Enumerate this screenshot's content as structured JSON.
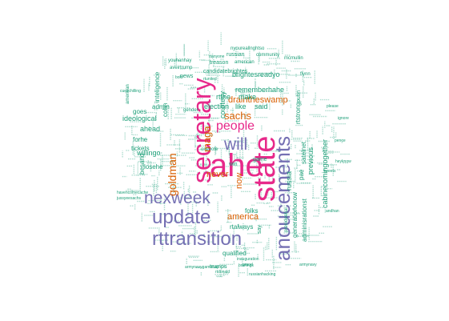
{
  "palette": {
    "teal": "#1b9e77",
    "orange": "#d95f02",
    "purple": "#7570b3",
    "pink": "#e7298a"
  },
  "words": [
    {
      "text": "ahe",
      "color": "pink"
    },
    {
      "text": "state",
      "color": "pink"
    },
    {
      "text": "secretary",
      "color": "pink"
    },
    {
      "text": "anoucements",
      "color": "purple"
    },
    {
      "text": "update",
      "color": "purple"
    },
    {
      "text": "nexweek",
      "color": "purple"
    },
    {
      "text": "rttransition",
      "color": "purple"
    },
    {
      "text": "will",
      "color": "purple"
    },
    {
      "text": "people",
      "color": "pink"
    },
    {
      "text": "goldman",
      "color": "orange"
    },
    {
      "text": "maga",
      "color": "orange"
    },
    {
      "text": "sachs",
      "color": "orange"
    },
    {
      "text": "draintheswamp",
      "color": "orange"
    },
    {
      "text": "america",
      "color": "orange"
    },
    {
      "text": "never",
      "color": "orange"
    },
    {
      "text": "now",
      "color": "orange"
    },
    {
      "text": "brightesreadyo",
      "color": "teal"
    },
    {
      "text": "rememberhahe",
      "color": "teal"
    },
    {
      "text": "election",
      "color": "teal"
    },
    {
      "text": "like",
      "color": "teal"
    },
    {
      "text": "said",
      "color": "teal"
    },
    {
      "text": "make",
      "color": "teal"
    },
    {
      "text": "rtthe",
      "color": "teal"
    },
    {
      "text": "ahead",
      "color": "teal"
    },
    {
      "text": "ideological",
      "color": "teal"
    },
    {
      "text": "forhe",
      "color": "teal"
    },
    {
      "text": "willingo",
      "color": "teal"
    },
    {
      "text": "tickets",
      "color": "teal"
    },
    {
      "text": "losehe",
      "color": "teal"
    },
    {
      "text": "besand",
      "color": "teal"
    },
    {
      "text": "goes",
      "color": "teal"
    },
    {
      "text": "admin",
      "color": "teal"
    },
    {
      "text": "cohn",
      "color": "teal"
    },
    {
      "text": "inteligence",
      "color": "teal"
    },
    {
      "text": "candidatebrightes",
      "color": "teal"
    },
    {
      "text": "treason",
      "color": "teal"
    },
    {
      "text": "russian",
      "color": "teal"
    },
    {
      "text": "qualified",
      "color": "teal"
    },
    {
      "text": "rtalways",
      "color": "teal"
    },
    {
      "text": "trumps",
      "color": "teal"
    },
    {
      "text": "folks",
      "color": "teal"
    },
    {
      "text": "russia",
      "color": "teal"
    },
    {
      "text": "pae",
      "color": "teal"
    },
    {
      "text": "satelnet",
      "color": "teal"
    },
    {
      "text": "generationonow",
      "color": "teal"
    },
    {
      "text": "previous",
      "color": "teal"
    },
    {
      "text": "adminisrationst",
      "color": "teal"
    },
    {
      "text": "cabinecomingogether",
      "color": "teal"
    },
    {
      "text": "rtstrong",
      "color": "teal"
    },
    {
      "text": "courtesy",
      "color": "teal"
    },
    {
      "text": "news",
      "color": "teal"
    },
    {
      "text": "game",
      "color": "teal"
    },
    {
      "text": "onevote",
      "color": "teal"
    },
    {
      "text": "win",
      "color": "teal"
    },
    {
      "text": "say",
      "color": "teal"
    },
    {
      "text": "putin",
      "color": "teal"
    },
    {
      "text": "mcmullin",
      "color": "teal"
    },
    {
      "text": "american",
      "color": "teal"
    },
    {
      "text": "community",
      "color": "teal"
    },
    {
      "text": "nyoureallnghtso",
      "color": "teal"
    },
    {
      "text": "youhanhay",
      "color": "teal"
    },
    {
      "text": "inauguration",
      "color": "teal"
    },
    {
      "text": "briefings",
      "color": "teal"
    },
    {
      "text": "russianhacking",
      "color": "teal"
    },
    {
      "text": "rtdonald",
      "color": "teal"
    },
    {
      "text": "armynavygameday",
      "color": "teal"
    },
    {
      "text": "havencomecache",
      "color": "teal"
    },
    {
      "text": "jussyeesachs",
      "color": "teal"
    },
    {
      "text": "cueschilling",
      "color": "teal"
    },
    {
      "text": "presidential",
      "color": "teal"
    },
    {
      "text": "gender",
      "color": "teal"
    },
    {
      "text": "grand",
      "color": "teal"
    },
    {
      "text": "amerivan",
      "color": "teal"
    },
    {
      "text": "rtanyone",
      "color": "teal"
    },
    {
      "text": "rtunited",
      "color": "teal"
    },
    {
      "text": "aveirtrump",
      "color": "teal"
    },
    {
      "text": "flynn",
      "color": "teal"
    },
    {
      "text": "bold",
      "color": "teal"
    },
    {
      "text": "tweets",
      "color": "teal"
    },
    {
      "text": "please",
      "color": "teal"
    },
    {
      "text": "pence",
      "color": "teal"
    },
    {
      "text": "andhan",
      "color": "teal"
    },
    {
      "text": "ignore",
      "color": "teal"
    },
    {
      "text": "heyknow",
      "color": "teal"
    },
    {
      "text": "armynavy",
      "color": "teal"
    }
  ]
}
